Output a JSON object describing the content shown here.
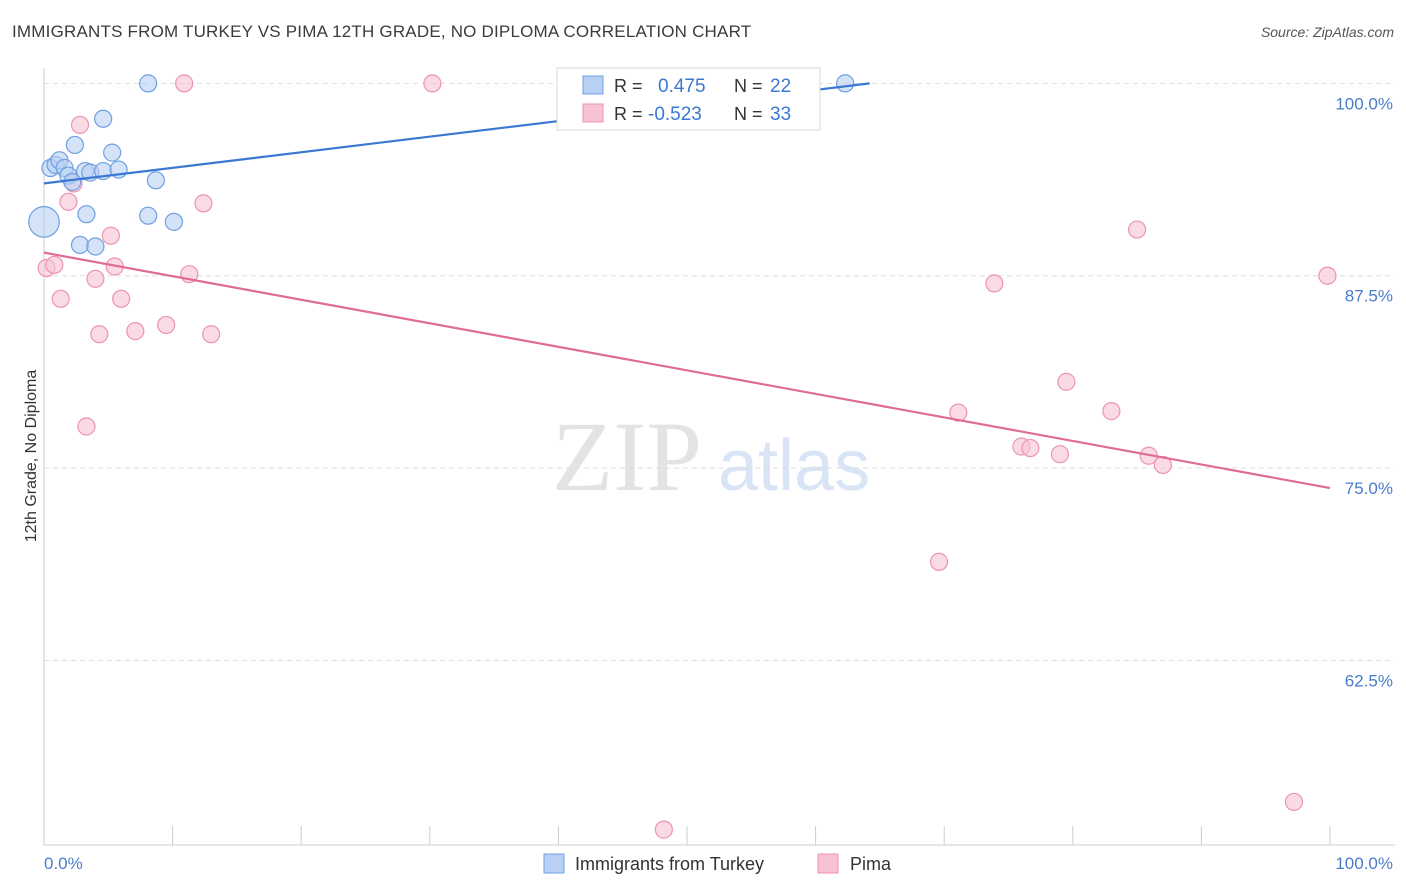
{
  "title": "IMMIGRANTS FROM TURKEY VS PIMA 12TH GRADE, NO DIPLOMA CORRELATION CHART",
  "source": "Source: ZipAtlas.com",
  "watermark": {
    "part1": "ZIP",
    "part2": "atlas"
  },
  "colors": {
    "blue": "#3a78d4",
    "blue_fill": "#b8d0f3",
    "blue_stroke": "#6f9fe0",
    "pink": "#e06a98",
    "pink_fill": "#f7c3d4",
    "pink_stroke": "#ec93b2",
    "tick": "#4a7ccc",
    "grid": "#dddddd"
  },
  "legend_box": {
    "rows": [
      {
        "r_label": "R =",
        "r_value": "0.475",
        "n_label": "N =",
        "n_value": "22",
        "series": "blue"
      },
      {
        "r_label": "R =",
        "r_value": "-0.523",
        "n_label": "N =",
        "n_value": "33",
        "series": "pink"
      }
    ]
  },
  "chart_data": {
    "type": "scatter",
    "title": "IMMIGRANTS FROM TURKEY VS PIMA 12TH GRADE, NO DIPLOMA CORRELATION CHART",
    "xlabel": "",
    "ylabel": "12th Grade, No Diploma",
    "xlim": [
      0,
      100
    ],
    "ylim": [
      50.5,
      101
    ],
    "x_tick_labels": {
      "min": "0.0%",
      "max": "100.0%"
    },
    "y_ticks": [
      {
        "value": 62.5,
        "label": "62.5%"
      },
      {
        "value": 75.0,
        "label": "75.0%"
      },
      {
        "value": 87.5,
        "label": "87.5%"
      },
      {
        "value": 100.0,
        "label": "100.0%"
      }
    ],
    "legend": {
      "position": "bottom-center",
      "items": [
        "Immigrants from Turkey",
        "Pima"
      ]
    },
    "series": [
      {
        "name": "Immigrants from Turkey",
        "color": "blue",
        "trend": {
          "x1": 0,
          "y1": 93.5,
          "x2": 64.2,
          "y2": 100.0
        },
        "points": [
          {
            "x": 0.0,
            "y": 91.0,
            "s": 3
          },
          {
            "x": 0.5,
            "y": 94.5,
            "s": 1
          },
          {
            "x": 0.9,
            "y": 94.7,
            "s": 1
          },
          {
            "x": 1.2,
            "y": 95.0,
            "s": 1
          },
          {
            "x": 1.6,
            "y": 94.5,
            "s": 1
          },
          {
            "x": 1.9,
            "y": 94.0,
            "s": 1
          },
          {
            "x": 2.2,
            "y": 93.6,
            "s": 1
          },
          {
            "x": 2.4,
            "y": 96.0,
            "s": 1
          },
          {
            "x": 2.8,
            "y": 89.5,
            "s": 1
          },
          {
            "x": 3.2,
            "y": 94.3,
            "s": 1
          },
          {
            "x": 3.3,
            "y": 91.5,
            "s": 1
          },
          {
            "x": 3.6,
            "y": 94.2,
            "s": 1
          },
          {
            "x": 4.0,
            "y": 89.4,
            "s": 1
          },
          {
            "x": 4.6,
            "y": 97.7,
            "s": 1
          },
          {
            "x": 4.6,
            "y": 94.3,
            "s": 1
          },
          {
            "x": 5.3,
            "y": 95.5,
            "s": 1
          },
          {
            "x": 5.8,
            "y": 94.4,
            "s": 1
          },
          {
            "x": 8.1,
            "y": 91.4,
            "s": 1
          },
          {
            "x": 8.1,
            "y": 100.0,
            "s": 1
          },
          {
            "x": 8.7,
            "y": 93.7,
            "s": 1
          },
          {
            "x": 10.1,
            "y": 91.0,
            "s": 1
          },
          {
            "x": 62.3,
            "y": 100.0,
            "s": 1
          }
        ]
      },
      {
        "name": "Pima",
        "color": "pink",
        "trend": {
          "x1": 0,
          "y1": 89.0,
          "x2": 100,
          "y2": 73.7
        },
        "points": [
          {
            "x": 0.2,
            "y": 88.0,
            "s": 1
          },
          {
            "x": 0.8,
            "y": 88.2,
            "s": 1
          },
          {
            "x": 1.3,
            "y": 86.0,
            "s": 1
          },
          {
            "x": 1.9,
            "y": 92.3,
            "s": 1
          },
          {
            "x": 2.3,
            "y": 93.5,
            "s": 1
          },
          {
            "x": 2.8,
            "y": 97.3,
            "s": 1
          },
          {
            "x": 3.3,
            "y": 77.7,
            "s": 1
          },
          {
            "x": 4.0,
            "y": 87.3,
            "s": 1
          },
          {
            "x": 4.3,
            "y": 83.7,
            "s": 1
          },
          {
            "x": 5.2,
            "y": 90.1,
            "s": 1
          },
          {
            "x": 5.5,
            "y": 88.1,
            "s": 1
          },
          {
            "x": 6.0,
            "y": 86.0,
            "s": 1
          },
          {
            "x": 7.1,
            "y": 83.9,
            "s": 1
          },
          {
            "x": 9.5,
            "y": 84.3,
            "s": 1
          },
          {
            "x": 10.9,
            "y": 100.0,
            "s": 1
          },
          {
            "x": 11.3,
            "y": 87.6,
            "s": 1
          },
          {
            "x": 12.4,
            "y": 92.2,
            "s": 1
          },
          {
            "x": 13.0,
            "y": 83.7,
            "s": 1
          },
          {
            "x": 30.2,
            "y": 100.0,
            "s": 1
          },
          {
            "x": 48.2,
            "y": 51.5,
            "s": 1
          },
          {
            "x": 69.6,
            "y": 68.9,
            "s": 1
          },
          {
            "x": 71.1,
            "y": 78.6,
            "s": 1
          },
          {
            "x": 73.9,
            "y": 87.0,
            "s": 1
          },
          {
            "x": 76.0,
            "y": 76.4,
            "s": 1
          },
          {
            "x": 76.7,
            "y": 76.3,
            "s": 1
          },
          {
            "x": 79.0,
            "y": 75.9,
            "s": 1
          },
          {
            "x": 79.5,
            "y": 80.6,
            "s": 1
          },
          {
            "x": 83.0,
            "y": 78.7,
            "s": 1
          },
          {
            "x": 85.0,
            "y": 90.5,
            "s": 1
          },
          {
            "x": 85.9,
            "y": 75.8,
            "s": 1
          },
          {
            "x": 87.0,
            "y": 75.2,
            "s": 1
          },
          {
            "x": 97.2,
            "y": 53.3,
            "s": 1
          },
          {
            "x": 99.8,
            "y": 87.5,
            "s": 1
          }
        ]
      }
    ]
  }
}
